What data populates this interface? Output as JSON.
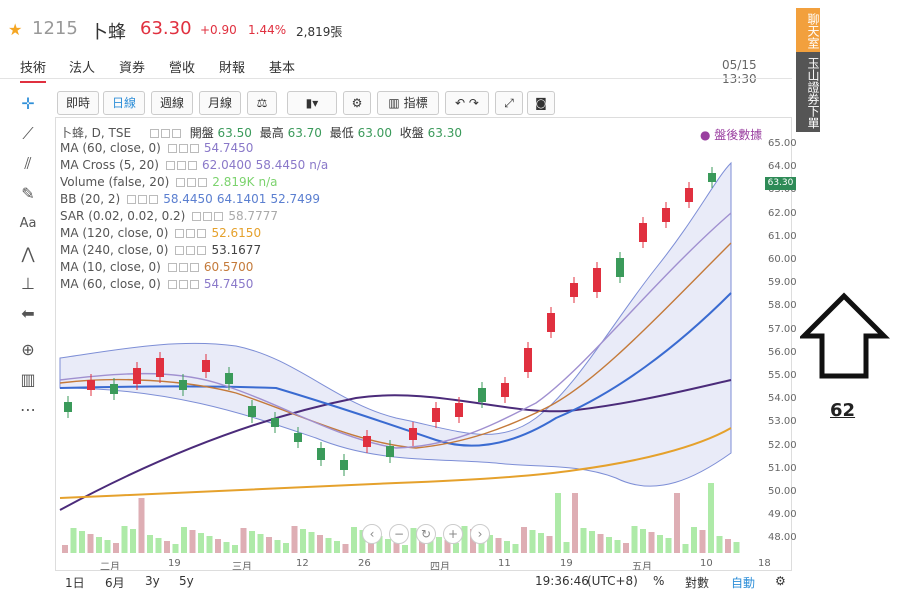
{
  "header": {
    "code": "1215",
    "name": "卜蜂",
    "price": "63.30",
    "change": "+0.90",
    "change_pct": "1.44%",
    "volume": "2,819張",
    "datetime": "05/15 13:30"
  },
  "tabs": [
    {
      "label": "技術",
      "active": true
    },
    {
      "label": "法人",
      "active": false
    },
    {
      "label": "資券",
      "active": false
    },
    {
      "label": "營收",
      "active": false
    },
    {
      "label": "財報",
      "active": false
    },
    {
      "label": "基本",
      "active": false
    }
  ],
  "side_panel": {
    "chat": "聊天室",
    "order": "玉山證券下單"
  },
  "toolbar": {
    "intraday": "即時",
    "daily": "日線",
    "weekly": "週線",
    "monthly": "月線",
    "indicator": "指標"
  },
  "legend": {
    "main": {
      "label": "卜蜂, D, TSE",
      "open_label": "開盤",
      "open": "63.50",
      "high_label": "最高",
      "high": "63.70",
      "low_label": "最低",
      "low": "63.00",
      "close_label": "收盤",
      "close": "63.30"
    },
    "rows": [
      {
        "label": "MA (60, close, 0)",
        "vals": [
          "54.7450"
        ],
        "color": "#8a79c9"
      },
      {
        "label": "MA Cross (5, 20)",
        "vals": [
          "62.0400",
          "58.4450",
          "n/a"
        ],
        "color": "#8a79c9"
      },
      {
        "label": "Volume (false, 20)",
        "vals": [
          "2.819K",
          "n/a"
        ],
        "color": "#7cd36e"
      },
      {
        "label": "BB (20, 2)",
        "vals": [
          "58.4450",
          "64.1401",
          "52.7499"
        ],
        "color": "#5b7fd0"
      },
      {
        "label": "SAR (0.02, 0.02, 0.2)",
        "vals": [
          "58.7777"
        ],
        "color": "#aaaaaa"
      },
      {
        "label": "MA (120, close, 0)",
        "vals": [
          "52.6150"
        ],
        "color": "#e5a12c"
      },
      {
        "label": "MA (240, close, 0)",
        "vals": [
          "53.1677"
        ],
        "color": "#444"
      },
      {
        "label": "MA (10, close, 0)",
        "vals": [
          "60.5700"
        ],
        "color": "#c47a3a"
      },
      {
        "label": "MA (60, close, 0)",
        "vals": [
          "54.7450"
        ],
        "color": "#8a79c9"
      }
    ]
  },
  "after_hours": "● 盤後數據",
  "y_axis": [
    "65.00",
    "64.00",
    "63.00",
    "62.00",
    "61.00",
    "60.00",
    "59.00",
    "58.00",
    "57.00",
    "56.00",
    "55.00",
    "54.00",
    "53.00",
    "52.00",
    "51.00",
    "50.00",
    "49.00",
    "48.00"
  ],
  "x_axis": [
    "二月",
    "19",
    "三月",
    "12",
    "26",
    "四月",
    "11",
    "19",
    "五月",
    "10",
    "18"
  ],
  "price_tag": "63.30",
  "bottom": {
    "r1d": "1日",
    "r6m": "6月",
    "r3y": "3y",
    "r5y": "5y",
    "time": "19:36:46",
    "tz": "(UTC+8)",
    "pct": "%",
    "log": "對數",
    "auto": "自動"
  },
  "annotation": "62",
  "colors": {
    "up": "#e0303f",
    "down": "#3a9a5a",
    "accent": "#2f8fd8"
  }
}
